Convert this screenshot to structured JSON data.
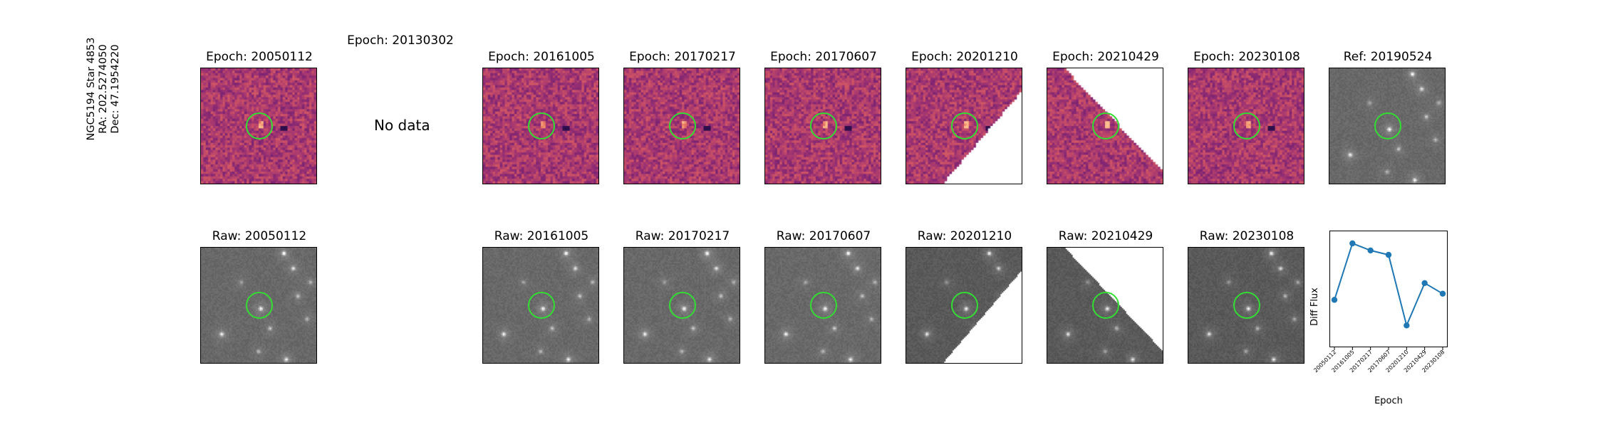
{
  "target": {
    "line1": "NGC5194 Star 4853",
    "line2": "RA: 202.5274050",
    "line3": "Dec: 47.1954220"
  },
  "no_data": {
    "title": "Epoch: 20130302",
    "message": "No data"
  },
  "diff_titles": [
    "Epoch: 20050112",
    "Epoch: 20161005",
    "Epoch: 20170217",
    "Epoch: 20170607",
    "Epoch: 20201210",
    "Epoch: 20210429",
    "Epoch: 20230108"
  ],
  "ref_title": "Ref: 20190524",
  "raw_titles": [
    "Raw: 20050112",
    "Raw: 20161005",
    "Raw: 20170217",
    "Raw: 20170607",
    "Raw: 20201210",
    "Raw: 20210429",
    "Raw: 20230108"
  ],
  "colors": {
    "ring": "#33dd33",
    "series": "#1f77b4"
  },
  "chart_data": {
    "type": "line",
    "xlabel": "Epoch",
    "ylabel": "Diff Flux",
    "x": [
      "20050112",
      "20161005",
      "20170217",
      "20170607",
      "20201210",
      "20210429",
      "20230108"
    ],
    "series": [
      {
        "values": [
          0.36,
          1.0,
          0.92,
          0.87,
          0.07,
          0.55,
          0.43
        ]
      }
    ],
    "yticks_shown": false
  }
}
